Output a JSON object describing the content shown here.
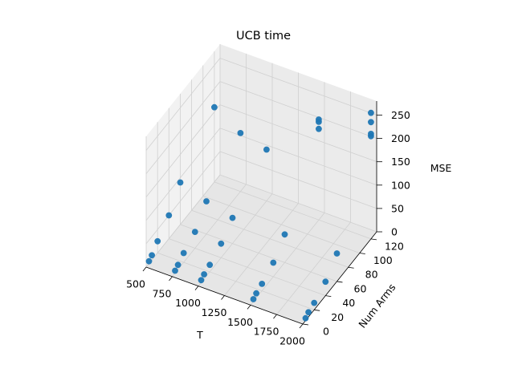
{
  "chart_data": {
    "type": "scatter",
    "title": "UCB time",
    "xlabel": "T",
    "ylabel": "Num Arms",
    "zlabel": "MSE",
    "x_ticks": [
      "500",
      "750",
      "1000",
      "1250",
      "1500",
      "1750",
      "2000"
    ],
    "y_ticks": [
      "0",
      "20",
      "40",
      "60",
      "80",
      "100",
      "120"
    ],
    "z_ticks": [
      "0",
      "50",
      "100",
      "150",
      "200",
      "250"
    ],
    "xlim": [
      500,
      2000
    ],
    "ylim": [
      0,
      130
    ],
    "zlim": [
      0,
      280
    ],
    "grid": true,
    "points": [
      {
        "x": 500,
        "y": 5,
        "z": 5
      },
      {
        "x": 500,
        "y": 10,
        "z": 10
      },
      {
        "x": 500,
        "y": 20,
        "z": 25
      },
      {
        "x": 500,
        "y": 40,
        "z": 50
      },
      {
        "x": 500,
        "y": 60,
        "z": 90
      },
      {
        "x": 500,
        "y": 120,
        "z": 160
      },
      {
        "x": 750,
        "y": 5,
        "z": 5
      },
      {
        "x": 750,
        "y": 10,
        "z": 10
      },
      {
        "x": 750,
        "y": 20,
        "z": 20
      },
      {
        "x": 750,
        "y": 40,
        "z": 35
      },
      {
        "x": 750,
        "y": 60,
        "z": 70
      },
      {
        "x": 750,
        "y": 120,
        "z": 125
      },
      {
        "x": 1000,
        "y": 5,
        "z": 5
      },
      {
        "x": 1000,
        "y": 10,
        "z": 10
      },
      {
        "x": 1000,
        "y": 20,
        "z": 15
      },
      {
        "x": 1000,
        "y": 40,
        "z": 30
      },
      {
        "x": 1000,
        "y": 60,
        "z": 55
      },
      {
        "x": 1000,
        "y": 120,
        "z": 110
      },
      {
        "x": 1500,
        "y": 5,
        "z": 5
      },
      {
        "x": 1500,
        "y": 10,
        "z": 10
      },
      {
        "x": 1500,
        "y": 20,
        "z": 15
      },
      {
        "x": 1500,
        "y": 40,
        "z": 30
      },
      {
        "x": 1500,
        "y": 60,
        "z": 60
      },
      {
        "x": 1500,
        "y": 120,
        "z": 195
      },
      {
        "x": 1500,
        "y": 120,
        "z": 210
      },
      {
        "x": 1500,
        "y": 120,
        "z": 215
      },
      {
        "x": 2000,
        "y": 5,
        "z": 5
      },
      {
        "x": 2000,
        "y": 10,
        "z": 10
      },
      {
        "x": 2000,
        "y": 20,
        "z": 15
      },
      {
        "x": 2000,
        "y": 40,
        "z": 30
      },
      {
        "x": 2000,
        "y": 60,
        "z": 60
      },
      {
        "x": 2000,
        "y": 120,
        "z": 220
      },
      {
        "x": 2000,
        "y": 120,
        "z": 225
      },
      {
        "x": 2000,
        "y": 120,
        "z": 250
      },
      {
        "x": 2000,
        "y": 120,
        "z": 270
      }
    ]
  }
}
